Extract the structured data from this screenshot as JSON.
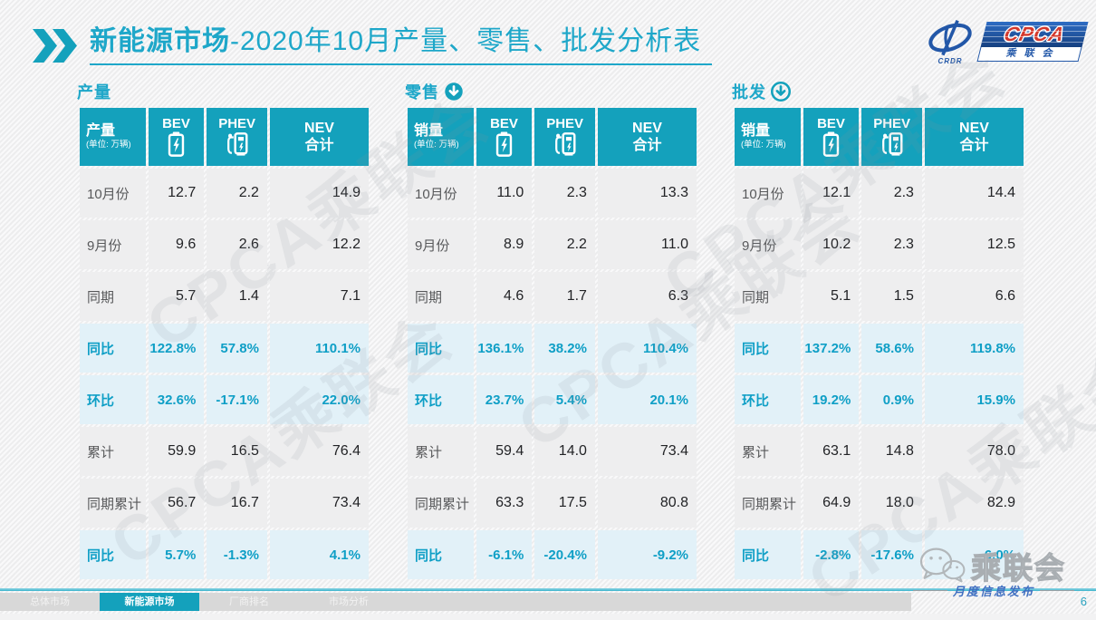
{
  "header": {
    "title_bold": "新能源市场",
    "title_rest": "-2020年10月产量、零售、批发分析表"
  },
  "logo": {
    "emblem_text": "CRDR",
    "acronym": "CPCA",
    "cn_name": "乘联会"
  },
  "watermark": {
    "text": "CPCA乘联会"
  },
  "icons": {
    "header_chevrons": "double-right-chevron-icon",
    "bev": "battery-icon",
    "phev": "charger-icon",
    "retail_trend": "down-arrow-filled-circle-icon",
    "wholesale_trend": "down-arrow-outline-circle-icon",
    "wechat": "wechat-icon"
  },
  "tables": [
    {
      "section_title": "产量",
      "trend_icon": "none",
      "header": {
        "label": "产量",
        "unit": "(单位: 万辆)",
        "bev": "BEV",
        "phev": "PHEV",
        "nev_line1": "NEV",
        "nev_line2": "合计"
      },
      "rows": [
        {
          "label": "10月份",
          "type": "normal",
          "values": [
            "12.7",
            "2.2",
            "14.9"
          ]
        },
        {
          "label": "9月份",
          "type": "normal",
          "values": [
            "9.6",
            "2.6",
            "12.2"
          ]
        },
        {
          "label": "同期",
          "type": "normal",
          "values": [
            "5.7",
            "1.4",
            "7.1"
          ]
        },
        {
          "label": "同比",
          "type": "percent",
          "values": [
            "122.8%",
            "57.8%",
            "110.1%"
          ]
        },
        {
          "label": "环比",
          "type": "percent",
          "values": [
            "32.6%",
            "-17.1%",
            "22.0%"
          ]
        },
        {
          "label": "累计",
          "type": "normal",
          "values": [
            "59.9",
            "16.5",
            "76.4"
          ]
        },
        {
          "label": "同期累计",
          "type": "normal",
          "values": [
            "56.7",
            "16.7",
            "73.4"
          ]
        },
        {
          "label": "同比",
          "type": "percent",
          "values": [
            "5.7%",
            "-1.3%",
            "4.1%"
          ]
        }
      ]
    },
    {
      "section_title": "零售",
      "trend_icon": "filled-down-circle",
      "header": {
        "label": "销量",
        "unit": "(单位: 万辆)",
        "bev": "BEV",
        "phev": "PHEV",
        "nev_line1": "NEV",
        "nev_line2": "合计"
      },
      "rows": [
        {
          "label": "10月份",
          "type": "normal",
          "values": [
            "11.0",
            "2.3",
            "13.3"
          ]
        },
        {
          "label": "9月份",
          "type": "normal",
          "values": [
            "8.9",
            "2.2",
            "11.0"
          ]
        },
        {
          "label": "同期",
          "type": "normal",
          "values": [
            "4.6",
            "1.7",
            "6.3"
          ]
        },
        {
          "label": "同比",
          "type": "percent",
          "values": [
            "136.1%",
            "38.2%",
            "110.4%"
          ]
        },
        {
          "label": "环比",
          "type": "percent",
          "values": [
            "23.7%",
            "5.4%",
            "20.1%"
          ]
        },
        {
          "label": "累计",
          "type": "normal",
          "values": [
            "59.4",
            "14.0",
            "73.4"
          ]
        },
        {
          "label": "同期累计",
          "type": "normal",
          "values": [
            "63.3",
            "17.5",
            "80.8"
          ]
        },
        {
          "label": "同比",
          "type": "percent",
          "values": [
            "-6.1%",
            "-20.4%",
            "-9.2%"
          ]
        }
      ]
    },
    {
      "section_title": "批发",
      "trend_icon": "outline-down-circle",
      "header": {
        "label": "销量",
        "unit": "(单位: 万辆)",
        "bev": "BEV",
        "phev": "PHEV",
        "nev_line1": "NEV",
        "nev_line2": "合计"
      },
      "rows": [
        {
          "label": "10月份",
          "type": "normal",
          "values": [
            "12.1",
            "2.3",
            "14.4"
          ]
        },
        {
          "label": "9月份",
          "type": "normal",
          "values": [
            "10.2",
            "2.3",
            "12.5"
          ]
        },
        {
          "label": "同期",
          "type": "normal",
          "values": [
            "5.1",
            "1.5",
            "6.6"
          ]
        },
        {
          "label": "同比",
          "type": "percent",
          "values": [
            "137.2%",
            "58.6%",
            "119.8%"
          ]
        },
        {
          "label": "环比",
          "type": "percent",
          "values": [
            "19.2%",
            "0.9%",
            "15.9%"
          ]
        },
        {
          "label": "累计",
          "type": "normal",
          "values": [
            "63.1",
            "14.8",
            "78.0"
          ]
        },
        {
          "label": "同期累计",
          "type": "normal",
          "values": [
            "64.9",
            "18.0",
            "82.9"
          ]
        },
        {
          "label": "同比",
          "type": "percent",
          "values": [
            "-2.8%",
            "-17.6%",
            "-6.0%"
          ]
        }
      ]
    }
  ],
  "footer": {
    "tabs": [
      {
        "label": "总体市场",
        "active": false
      },
      {
        "label": "新能源市场",
        "active": true
      },
      {
        "label": "厂商排名",
        "active": false
      },
      {
        "label": "市场分析",
        "active": false
      }
    ],
    "wechat_label": "乘联会",
    "release_label": "月度信息发布",
    "page_number": "6"
  },
  "colors": {
    "accent_teal": "#14a1bc",
    "title_teal": "#1ea7c9",
    "percent_text": "#0f9fc6",
    "percent_row_bg": "#e2f1f8",
    "row_bg": "#eeeeef",
    "tab_gray": "#d8d8d8",
    "logo_blue": "#2257a8",
    "cpca_red": "#d4382c",
    "release_blue": "#3f6fc1"
  }
}
